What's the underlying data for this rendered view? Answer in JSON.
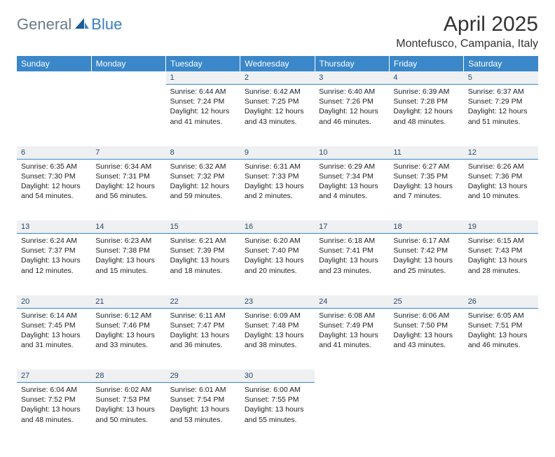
{
  "logo": {
    "part1": "General",
    "part2": "Blue"
  },
  "title": "April 2025",
  "location": "Montefusco, Campania, Italy",
  "colors": {
    "header_bg": "#3a87c9",
    "header_fg": "#ffffff",
    "daynum_bg": "#eef0f2",
    "daynum_fg": "#2b4a6b",
    "divider": "#3a87c9",
    "logo_gray": "#6b7a89",
    "logo_blue": "#3a7fbf",
    "text": "#222222",
    "background": "#ffffff"
  },
  "typography": {
    "title_fontsize": 30,
    "location_fontsize": 16,
    "logo_fontsize": 22,
    "dayheader_fontsize": 12,
    "daynum_fontsize": 11,
    "cell_fontsize": 10.5
  },
  "day_headers": [
    "Sunday",
    "Monday",
    "Tuesday",
    "Wednesday",
    "Thursday",
    "Friday",
    "Saturday"
  ],
  "weeks": [
    [
      null,
      null,
      {
        "n": "1",
        "sunrise": "6:44 AM",
        "sunset": "7:24 PM",
        "daylight": "12 hours and 41 minutes."
      },
      {
        "n": "2",
        "sunrise": "6:42 AM",
        "sunset": "7:25 PM",
        "daylight": "12 hours and 43 minutes."
      },
      {
        "n": "3",
        "sunrise": "6:40 AM",
        "sunset": "7:26 PM",
        "daylight": "12 hours and 46 minutes."
      },
      {
        "n": "4",
        "sunrise": "6:39 AM",
        "sunset": "7:28 PM",
        "daylight": "12 hours and 48 minutes."
      },
      {
        "n": "5",
        "sunrise": "6:37 AM",
        "sunset": "7:29 PM",
        "daylight": "12 hours and 51 minutes."
      }
    ],
    [
      {
        "n": "6",
        "sunrise": "6:35 AM",
        "sunset": "7:30 PM",
        "daylight": "12 hours and 54 minutes."
      },
      {
        "n": "7",
        "sunrise": "6:34 AM",
        "sunset": "7:31 PM",
        "daylight": "12 hours and 56 minutes."
      },
      {
        "n": "8",
        "sunrise": "6:32 AM",
        "sunset": "7:32 PM",
        "daylight": "12 hours and 59 minutes."
      },
      {
        "n": "9",
        "sunrise": "6:31 AM",
        "sunset": "7:33 PM",
        "daylight": "13 hours and 2 minutes."
      },
      {
        "n": "10",
        "sunrise": "6:29 AM",
        "sunset": "7:34 PM",
        "daylight": "13 hours and 4 minutes."
      },
      {
        "n": "11",
        "sunrise": "6:27 AM",
        "sunset": "7:35 PM",
        "daylight": "13 hours and 7 minutes."
      },
      {
        "n": "12",
        "sunrise": "6:26 AM",
        "sunset": "7:36 PM",
        "daylight": "13 hours and 10 minutes."
      }
    ],
    [
      {
        "n": "13",
        "sunrise": "6:24 AM",
        "sunset": "7:37 PM",
        "daylight": "13 hours and 12 minutes."
      },
      {
        "n": "14",
        "sunrise": "6:23 AM",
        "sunset": "7:38 PM",
        "daylight": "13 hours and 15 minutes."
      },
      {
        "n": "15",
        "sunrise": "6:21 AM",
        "sunset": "7:39 PM",
        "daylight": "13 hours and 18 minutes."
      },
      {
        "n": "16",
        "sunrise": "6:20 AM",
        "sunset": "7:40 PM",
        "daylight": "13 hours and 20 minutes."
      },
      {
        "n": "17",
        "sunrise": "6:18 AM",
        "sunset": "7:41 PM",
        "daylight": "13 hours and 23 minutes."
      },
      {
        "n": "18",
        "sunrise": "6:17 AM",
        "sunset": "7:42 PM",
        "daylight": "13 hours and 25 minutes."
      },
      {
        "n": "19",
        "sunrise": "6:15 AM",
        "sunset": "7:43 PM",
        "daylight": "13 hours and 28 minutes."
      }
    ],
    [
      {
        "n": "20",
        "sunrise": "6:14 AM",
        "sunset": "7:45 PM",
        "daylight": "13 hours and 31 minutes."
      },
      {
        "n": "21",
        "sunrise": "6:12 AM",
        "sunset": "7:46 PM",
        "daylight": "13 hours and 33 minutes."
      },
      {
        "n": "22",
        "sunrise": "6:11 AM",
        "sunset": "7:47 PM",
        "daylight": "13 hours and 36 minutes."
      },
      {
        "n": "23",
        "sunrise": "6:09 AM",
        "sunset": "7:48 PM",
        "daylight": "13 hours and 38 minutes."
      },
      {
        "n": "24",
        "sunrise": "6:08 AM",
        "sunset": "7:49 PM",
        "daylight": "13 hours and 41 minutes."
      },
      {
        "n": "25",
        "sunrise": "6:06 AM",
        "sunset": "7:50 PM",
        "daylight": "13 hours and 43 minutes."
      },
      {
        "n": "26",
        "sunrise": "6:05 AM",
        "sunset": "7:51 PM",
        "daylight": "13 hours and 46 minutes."
      }
    ],
    [
      {
        "n": "27",
        "sunrise": "6:04 AM",
        "sunset": "7:52 PM",
        "daylight": "13 hours and 48 minutes."
      },
      {
        "n": "28",
        "sunrise": "6:02 AM",
        "sunset": "7:53 PM",
        "daylight": "13 hours and 50 minutes."
      },
      {
        "n": "29",
        "sunrise": "6:01 AM",
        "sunset": "7:54 PM",
        "daylight": "13 hours and 53 minutes."
      },
      {
        "n": "30",
        "sunrise": "6:00 AM",
        "sunset": "7:55 PM",
        "daylight": "13 hours and 55 minutes."
      },
      null,
      null,
      null
    ]
  ],
  "labels": {
    "sunrise": "Sunrise:",
    "sunset": "Sunset:",
    "daylight": "Daylight:"
  }
}
